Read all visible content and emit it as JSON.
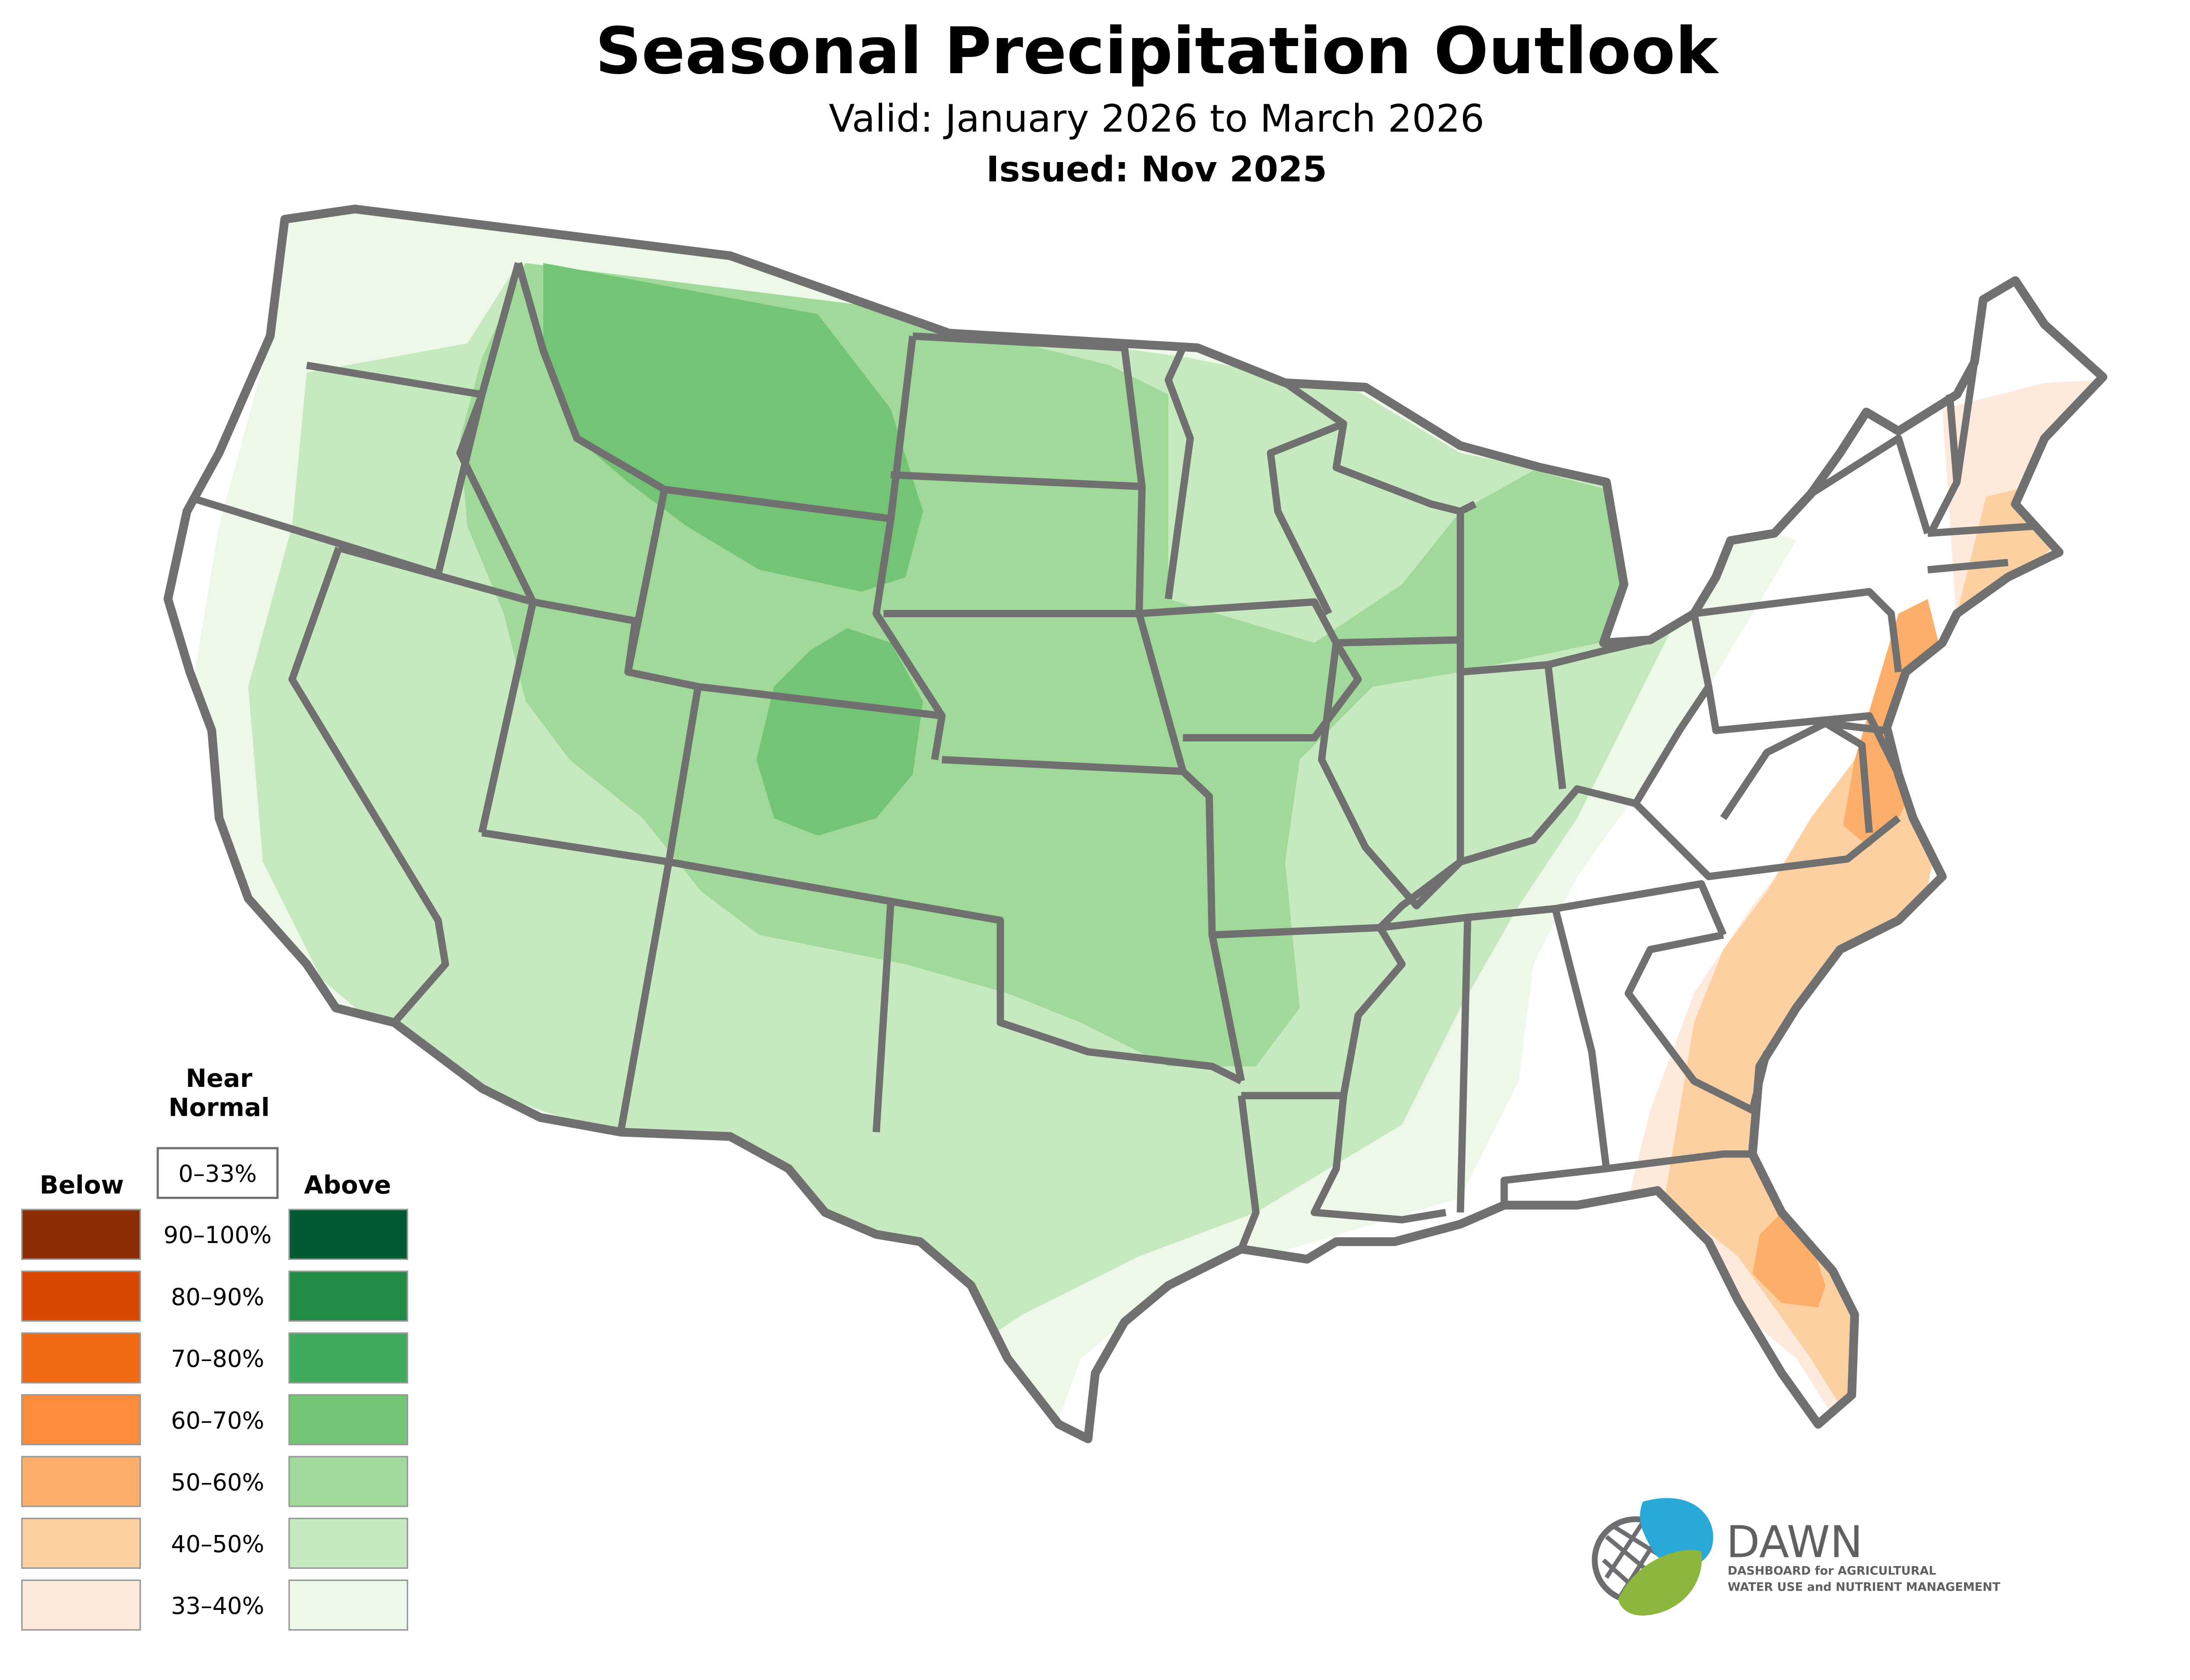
{
  "header": {
    "title": "Seasonal Precipitation Outlook",
    "valid": "Valid: January 2026 to March 2026",
    "issued": "Issued: Nov 2025"
  },
  "legend": {
    "below_label": "Below",
    "near_normal_label_1": "Near",
    "near_normal_label_2": "Normal",
    "near_normal_range": "0–33%",
    "above_label": "Above",
    "bins": [
      {
        "range": "90–100%",
        "below_color": "#8c2d04",
        "above_color": "#005a32"
      },
      {
        "range": "80–90%",
        "below_color": "#d94801",
        "above_color": "#238b45"
      },
      {
        "range": "70–80%",
        "below_color": "#f16913",
        "above_color": "#41ab5d"
      },
      {
        "range": "60–70%",
        "below_color": "#fd8d3c",
        "above_color": "#74c476"
      },
      {
        "range": "50–60%",
        "below_color": "#fdae6b",
        "above_color": "#a1d99b"
      },
      {
        "range": "40–50%",
        "below_color": "#fdd0a2",
        "above_color": "#c7e9c0"
      },
      {
        "range": "33–40%",
        "below_color": "#feeadc",
        "above_color": "#edf8e9"
      }
    ]
  },
  "logo": {
    "name": "DAWN",
    "line1": "DASHBOARD for AGRICULTURAL",
    "line2": "WATER USE and NUTRIENT MANAGEMENT",
    "blue": "#2aa9d8",
    "green": "#8db63c",
    "gray": "#6d6e71"
  }
}
